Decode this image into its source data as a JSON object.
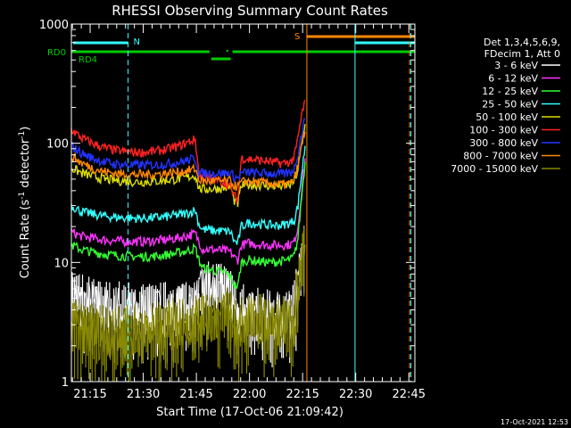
{
  "chart_data": {
    "type": "line",
    "title": "RHESSI Observing Summary Count Rates",
    "xlabel": "Start Time (17-Oct-06 21:09:42)",
    "ylabel_main": "Count Rate (s",
    "ylabel_sup1": "-1",
    "ylabel_mid": " detector",
    "ylabel_sup2": "-1",
    "ylabel_end": ")",
    "y_scale": "log",
    "ylim": [
      1,
      1000
    ],
    "xlim_minutes": [
      0,
      97
    ],
    "x_ticks": [
      {
        "m": 5.3,
        "label": "21:15"
      },
      {
        "m": 20.3,
        "label": "21:30"
      },
      {
        "m": 35.3,
        "label": "21:45"
      },
      {
        "m": 50.3,
        "label": "22:00"
      },
      {
        "m": 65.3,
        "label": "22:15"
      },
      {
        "m": 80.3,
        "label": "22:30"
      },
      {
        "m": 95.3,
        "label": "22:45"
      }
    ],
    "y_ticks": [
      {
        "v": 1,
        "label": "1"
      },
      {
        "v": 10,
        "label": "10"
      },
      {
        "v": 100,
        "label": "100"
      },
      {
        "v": 1000,
        "label": "1000"
      }
    ],
    "legend_header": [
      "Det 1,3,4,5,6,9,",
      "FDecim 1, Att 0"
    ],
    "legend_placement": "right",
    "series": [
      {
        "name": "3 - 6 keV",
        "color": "#ffffff",
        "x": [
          0,
          3,
          6,
          9,
          12,
          15,
          18,
          21,
          24,
          27,
          30,
          33,
          35,
          36,
          38,
          40,
          42,
          44,
          45,
          46,
          47,
          48,
          50,
          52,
          54,
          56,
          58,
          60,
          62,
          63,
          64,
          65,
          66
        ],
        "y": [
          5.5,
          4.5,
          4.2,
          4,
          4,
          3.9,
          3.8,
          3.8,
          3.8,
          3.9,
          4,
          4.2,
          4.5,
          5,
          5.5,
          6,
          5.8,
          5.5,
          5,
          4.2,
          3.5,
          4,
          3.6,
          3.5,
          3.5,
          3.5,
          3.5,
          3.5,
          3.5,
          4,
          6,
          9,
          14
        ]
      },
      {
        "name": "6 - 12 keV",
        "color": "#ff33ff",
        "x": [
          0,
          3,
          6,
          9,
          12,
          15,
          18,
          21,
          24,
          27,
          30,
          33,
          35,
          36,
          37,
          40,
          43,
          44,
          45,
          46,
          47,
          48,
          50,
          53,
          56,
          59,
          60,
          62,
          63,
          64,
          65,
          66
        ],
        "y": [
          18,
          16.5,
          16,
          15.5,
          15.2,
          15,
          15,
          15,
          15.2,
          15.5,
          16,
          16.8,
          17.5,
          15,
          13,
          12.8,
          12.6,
          12.4,
          12.2,
          11,
          10.5,
          14,
          14.5,
          14.2,
          14,
          14,
          14,
          14.2,
          15,
          20,
          40,
          75
        ]
      },
      {
        "name": "12 - 25 keV",
        "color": "#33ff33",
        "x": [
          0,
          3,
          6,
          9,
          12,
          15,
          18,
          21,
          24,
          27,
          30,
          33,
          35,
          36,
          37,
          40,
          43,
          44,
          45,
          46,
          47,
          48,
          50,
          53,
          56,
          59,
          60,
          62,
          63,
          64,
          65,
          66
        ],
        "y": [
          14,
          12.8,
          12.2,
          11.8,
          11.5,
          11.3,
          11.2,
          11.2,
          11.3,
          11.6,
          12,
          12.6,
          13.2,
          10.5,
          9,
          8.6,
          8.3,
          8,
          7.5,
          6.5,
          6.2,
          10,
          10.5,
          10.2,
          10,
          10.2,
          10.3,
          10.6,
          11.5,
          16,
          35,
          70
        ]
      },
      {
        "name": "25 - 50 keV",
        "color": "#33ffff",
        "x": [
          0,
          3,
          6,
          9,
          12,
          15,
          18,
          21,
          24,
          27,
          30,
          33,
          35,
          36,
          37,
          40,
          43,
          44,
          45,
          46,
          47,
          48,
          50,
          53,
          56,
          59,
          60,
          62,
          63,
          64,
          65,
          66
        ],
        "y": [
          30,
          26.5,
          25.5,
          24.5,
          24,
          23.7,
          23.5,
          23.5,
          23.8,
          24.2,
          25,
          26,
          27.5,
          21,
          19,
          18.5,
          18.3,
          18.2,
          18,
          15,
          14.5,
          20,
          21.5,
          21,
          20.5,
          20.5,
          20.8,
          21.5,
          23,
          30,
          55,
          95
        ]
      },
      {
        "name": "50 - 100 keV",
        "color": "#dddd00",
        "x": [
          0,
          3,
          6,
          9,
          12,
          15,
          18,
          21,
          24,
          27,
          30,
          33,
          35,
          36,
          37,
          40,
          43,
          44,
          45,
          46,
          47,
          48,
          50,
          53,
          56,
          59,
          60,
          62,
          63,
          64,
          65,
          66
        ],
        "y": [
          62,
          56,
          53,
          50,
          49,
          48,
          47.5,
          47.5,
          48,
          49,
          50,
          52,
          54,
          42,
          41,
          41.5,
          42,
          42.5,
          43,
          33,
          31,
          44,
          45,
          44.5,
          44,
          43.5,
          44,
          45,
          48,
          60,
          95,
          145
        ]
      },
      {
        "name": "100 - 300 keV",
        "color": "#ff2222",
        "x": [
          0,
          3,
          6,
          9,
          12,
          15,
          18,
          21,
          24,
          27,
          30,
          33,
          35,
          36,
          37,
          40,
          43,
          44,
          45,
          46,
          47,
          48,
          50,
          53,
          56,
          59,
          60,
          62,
          63,
          64,
          65,
          66
        ],
        "y": [
          130,
          110,
          100,
          92,
          88,
          85,
          84,
          84,
          86,
          89,
          94,
          102,
          108,
          55,
          52,
          50,
          47.5,
          45,
          42,
          36,
          34,
          75,
          74,
          72,
          70,
          68,
          68,
          70,
          78,
          110,
          170,
          230
        ]
      },
      {
        "name": "300 - 800 keV",
        "color": "#2233ff",
        "x": [
          0,
          3,
          6,
          9,
          12,
          15,
          18,
          21,
          24,
          27,
          30,
          33,
          35,
          36,
          37,
          40,
          43,
          44,
          45,
          46,
          47,
          48,
          50,
          53,
          56,
          59,
          60,
          62,
          63,
          64,
          65,
          66
        ],
        "y": [
          95,
          82,
          75,
          70,
          67,
          66,
          65.5,
          65.5,
          66,
          67,
          69,
          72,
          75,
          57,
          56,
          56,
          56,
          56,
          56,
          52,
          51,
          56,
          57,
          56,
          56,
          55,
          55,
          57,
          62,
          82,
          120,
          160
        ]
      },
      {
        "name": "800 - 7000 keV",
        "color": "#ff8800",
        "x": [
          0,
          3,
          6,
          9,
          12,
          15,
          18,
          21,
          24,
          27,
          30,
          33,
          35,
          36,
          37,
          40,
          43,
          44,
          45,
          46,
          47,
          48,
          50,
          53,
          56,
          59,
          60,
          62,
          63,
          64,
          65,
          66
        ],
        "y": [
          78,
          68,
          62,
          58,
          56,
          55,
          54.5,
          54.5,
          55,
          56,
          57,
          59,
          61,
          50,
          48,
          48,
          48,
          48,
          48,
          44,
          43,
          47,
          48,
          47,
          46,
          45,
          45,
          46,
          50,
          65,
          95,
          125
        ]
      },
      {
        "name": "7000 - 15000 keV",
        "color": "#888800",
        "x": [
          0,
          4,
          8,
          12,
          16,
          20,
          24,
          28,
          32,
          36,
          40,
          44,
          46,
          47,
          48,
          52,
          56,
          60,
          62,
          63,
          64,
          65,
          66
        ],
        "y": [
          3,
          2.6,
          2.5,
          2.5,
          2.5,
          2.5,
          2.6,
          2.8,
          3,
          3.3,
          3.5,
          3.5,
          3,
          2.2,
          3.2,
          3.1,
          3,
          3,
          3,
          3.5,
          6,
          10,
          14
        ]
      }
    ],
    "flags": [
      {
        "label": "N",
        "color": "#33ffff",
        "start_m": 0,
        "end_m": 16,
        "row": "top"
      },
      {
        "label": "S",
        "color": "#ff8800",
        "start_m": 66.5,
        "end_m": 97,
        "row": "top"
      },
      {
        "label": "RD0",
        "color": "#00cc00",
        "row": "middle"
      },
      {
        "label": "RD4",
        "color": "#00cc00",
        "row": "lower"
      }
    ],
    "vlines": [
      {
        "m": 0,
        "color": "#33ffff",
        "style": "solid"
      },
      {
        "m": 16,
        "color": "#33ffff",
        "style": "dashed"
      },
      {
        "m": 66.5,
        "color": "#ff8800",
        "style": "solid"
      },
      {
        "m": 80.1,
        "color": "#33ffff",
        "style": "solid"
      },
      {
        "m": 95.5,
        "color": "#ff8800",
        "style": "dashed"
      },
      {
        "m": 95.5,
        "color": "#33ffff",
        "style": "dashed"
      }
    ],
    "footer_date": "17-Oct-2021 12:53"
  }
}
